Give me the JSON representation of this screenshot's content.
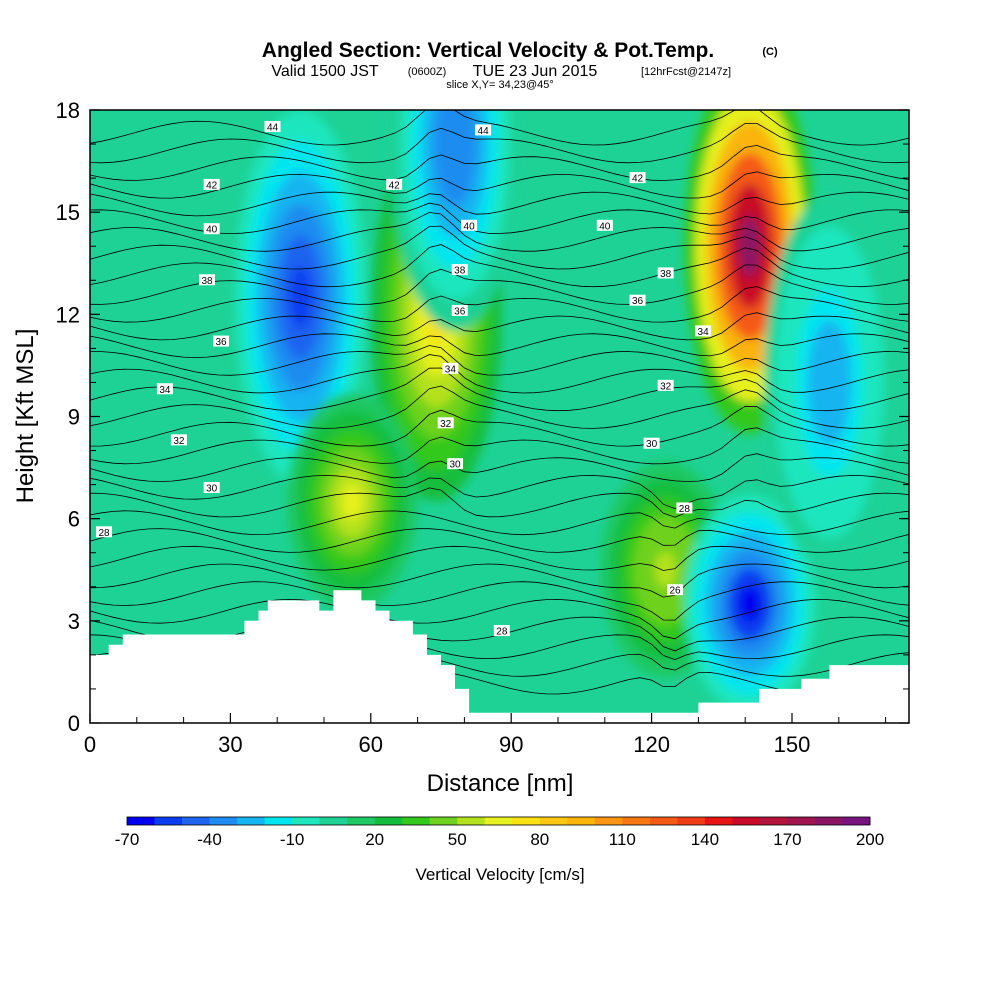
{
  "header": {
    "title_main": "Angled Section: Vertical Velocity & Pot.Temp.",
    "title_units": "(C)",
    "valid_prefix": "Valid 1500 JST",
    "valid_utc": "(0600Z)",
    "valid_date": "TUE 23 Jun 2015",
    "valid_fcst": "[12hrFcst@2147z]",
    "slice": "slice X,Y= 34,23@45°"
  },
  "chart_data": {
    "type": "heatmap",
    "xlabel": "Distance [nm]",
    "ylabel": "Height [Kft MSL]",
    "xlim": [
      0,
      175
    ],
    "ylim": [
      0,
      18
    ],
    "xticks": [
      0,
      30,
      60,
      90,
      120,
      150
    ],
    "yticks": [
      0,
      3,
      6,
      9,
      12,
      15,
      18
    ],
    "colorbar": {
      "label": "Vertical Velocity [cm/s]",
      "tick_labels": [
        "-70",
        "-40",
        "-10",
        "20",
        "50",
        "80",
        "110",
        "140",
        "170",
        "200"
      ],
      "levels": [
        -70,
        -60,
        -50,
        -40,
        -30,
        -20,
        -10,
        0,
        10,
        20,
        30,
        40,
        50,
        60,
        70,
        80,
        90,
        100,
        110,
        120,
        130,
        140,
        150,
        160,
        170,
        180,
        190,
        200
      ],
      "colors": [
        "#0000f0",
        "#0a3cf0",
        "#1e64f0",
        "#1e8cf0",
        "#14b4f0",
        "#00e6f0",
        "#1ee6be",
        "#1ed296",
        "#1ec864",
        "#14be3c",
        "#32c81e",
        "#6ed21e",
        "#b4e11e",
        "#e6f01e",
        "#fae114",
        "#fac814",
        "#fab40a",
        "#fa9614",
        "#fa7814",
        "#f55a14",
        "#f03c14",
        "#e61414",
        "#c80a28",
        "#b4143c",
        "#a01450",
        "#8c1464",
        "#78147d"
      ]
    },
    "velocity_features": [
      {
        "x": 45,
        "y": 12.5,
        "value": -60
      },
      {
        "x": 74,
        "y": 12,
        "value": 75
      },
      {
        "x": 56,
        "y": 6.5,
        "value": 65
      },
      {
        "x": 78,
        "y": 17,
        "value": -40
      },
      {
        "x": 123,
        "y": 4.5,
        "value": 55
      },
      {
        "x": 141,
        "y": 14,
        "value": 180
      },
      {
        "x": 141,
        "y": 3.5,
        "value": -65
      },
      {
        "x": 158,
        "y": 10,
        "value": -30
      }
    ],
    "potential_temperature": {
      "levels": [
        26,
        28,
        30,
        32,
        34,
        36,
        38,
        40,
        42,
        44
      ],
      "contour_labels": [
        {
          "text": "44",
          "x": 39,
          "y": 17.5
        },
        {
          "text": "44",
          "x": 84,
          "y": 17.4
        },
        {
          "text": "42",
          "x": 26,
          "y": 15.8
        },
        {
          "text": "42",
          "x": 65,
          "y": 15.8
        },
        {
          "text": "42",
          "x": 117,
          "y": 16
        },
        {
          "text": "40",
          "x": 26,
          "y": 14.5
        },
        {
          "text": "40",
          "x": 81,
          "y": 14.6
        },
        {
          "text": "40",
          "x": 110,
          "y": 14.6
        },
        {
          "text": "38",
          "x": 79,
          "y": 13.3
        },
        {
          "text": "38",
          "x": 25,
          "y": 13
        },
        {
          "text": "38",
          "x": 123,
          "y": 13.2
        },
        {
          "text": "36",
          "x": 79,
          "y": 12.1
        },
        {
          "text": "36",
          "x": 117,
          "y": 12.4
        },
        {
          "text": "36",
          "x": 28,
          "y": 11.2
        },
        {
          "text": "34",
          "x": 131,
          "y": 11.5
        },
        {
          "text": "34",
          "x": 77,
          "y": 10.4
        },
        {
          "text": "34",
          "x": 16,
          "y": 9.8
        },
        {
          "text": "32",
          "x": 123,
          "y": 9.9
        },
        {
          "text": "32",
          "x": 76,
          "y": 8.8
        },
        {
          "text": "32",
          "x": 19,
          "y": 8.3
        },
        {
          "text": "30",
          "x": 120,
          "y": 8.2
        },
        {
          "text": "30",
          "x": 78,
          "y": 7.6
        },
        {
          "text": "30",
          "x": 26,
          "y": 6.9
        },
        {
          "text": "28",
          "x": 3,
          "y": 5.6
        },
        {
          "text": "28",
          "x": 127,
          "y": 6.3
        },
        {
          "text": "28",
          "x": 88,
          "y": 2.7
        },
        {
          "text": "26",
          "x": 125,
          "y": 3.9
        }
      ]
    },
    "terrain_profile": [
      [
        0,
        2.0
      ],
      [
        4,
        2.0
      ],
      [
        4,
        2.3
      ],
      [
        7,
        2.3
      ],
      [
        7,
        2.6
      ],
      [
        33,
        2.6
      ],
      [
        33,
        3.0
      ],
      [
        36,
        3.0
      ],
      [
        36,
        3.3
      ],
      [
        38,
        3.3
      ],
      [
        38,
        3.6
      ],
      [
        49,
        3.6
      ],
      [
        49,
        3.3
      ],
      [
        52,
        3.3
      ],
      [
        52,
        3.9
      ],
      [
        58,
        3.9
      ],
      [
        58,
        3.6
      ],
      [
        61,
        3.6
      ],
      [
        61,
        3.3
      ],
      [
        64,
        3.3
      ],
      [
        64,
        3.0
      ],
      [
        69,
        3.0
      ],
      [
        69,
        2.6
      ],
      [
        72,
        2.6
      ],
      [
        72,
        2.0
      ],
      [
        75,
        2.0
      ],
      [
        75,
        1.7
      ],
      [
        78,
        1.7
      ],
      [
        78,
        1.0
      ],
      [
        81,
        1.0
      ],
      [
        81,
        0.3
      ],
      [
        130,
        0.3
      ],
      [
        130,
        0.6
      ],
      [
        143,
        0.6
      ],
      [
        143,
        1.0
      ],
      [
        152,
        1.0
      ],
      [
        152,
        1.3
      ],
      [
        158,
        1.3
      ],
      [
        158,
        1.7
      ],
      [
        175,
        1.7
      ]
    ]
  }
}
